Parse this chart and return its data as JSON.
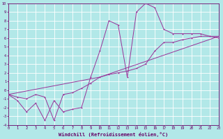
{
  "title": "",
  "xlabel": "Windchill (Refroidissement éolien,°C)",
  "ylabel": "",
  "bg_color": "#b2e8e8",
  "grid_color": "#ffffff",
  "line_color": "#993399",
  "xlim": [
    0,
    23
  ],
  "ylim": [
    -4,
    10
  ],
  "xticks": [
    0,
    1,
    2,
    3,
    4,
    5,
    6,
    7,
    8,
    9,
    10,
    11,
    12,
    13,
    14,
    15,
    16,
    17,
    18,
    19,
    20,
    21,
    22,
    23
  ],
  "yticks": [
    -4,
    -3,
    -2,
    -1,
    0,
    1,
    2,
    3,
    4,
    5,
    6,
    7,
    8,
    9,
    10
  ],
  "jagged_x": [
    0,
    1,
    2,
    3,
    4,
    5,
    6,
    7,
    8,
    9,
    10,
    11,
    12,
    13,
    14,
    15,
    16,
    17,
    18,
    19,
    20,
    21,
    22,
    23
  ],
  "jagged_y": [
    -0.5,
    -1.2,
    -2.5,
    -1.5,
    -3.5,
    -1.2,
    -2.5,
    -2.2,
    -2.0,
    1.5,
    4.5,
    8.0,
    7.5,
    1.5,
    9.0,
    10.0,
    9.5,
    7.0,
    6.5,
    6.5,
    6.5,
    6.5,
    6.2,
    6.0
  ],
  "line2_x": [
    0,
    1,
    2,
    3,
    4,
    5,
    6,
    7,
    8,
    9,
    10,
    11,
    12,
    13,
    14,
    15,
    16,
    17,
    18,
    19,
    20,
    21,
    22,
    23
  ],
  "line2_y": [
    -0.5,
    -0.8,
    -1.0,
    -0.5,
    -0.8,
    -3.5,
    -0.5,
    -0.3,
    0.2,
    0.8,
    1.5,
    1.8,
    2.0,
    2.2,
    2.5,
    3.0,
    4.5,
    5.5,
    5.5,
    5.8,
    6.0,
    6.2,
    6.2,
    6.2
  ],
  "line3_x": [
    0,
    10,
    23
  ],
  "line3_y": [
    -0.5,
    1.5,
    6.2
  ]
}
